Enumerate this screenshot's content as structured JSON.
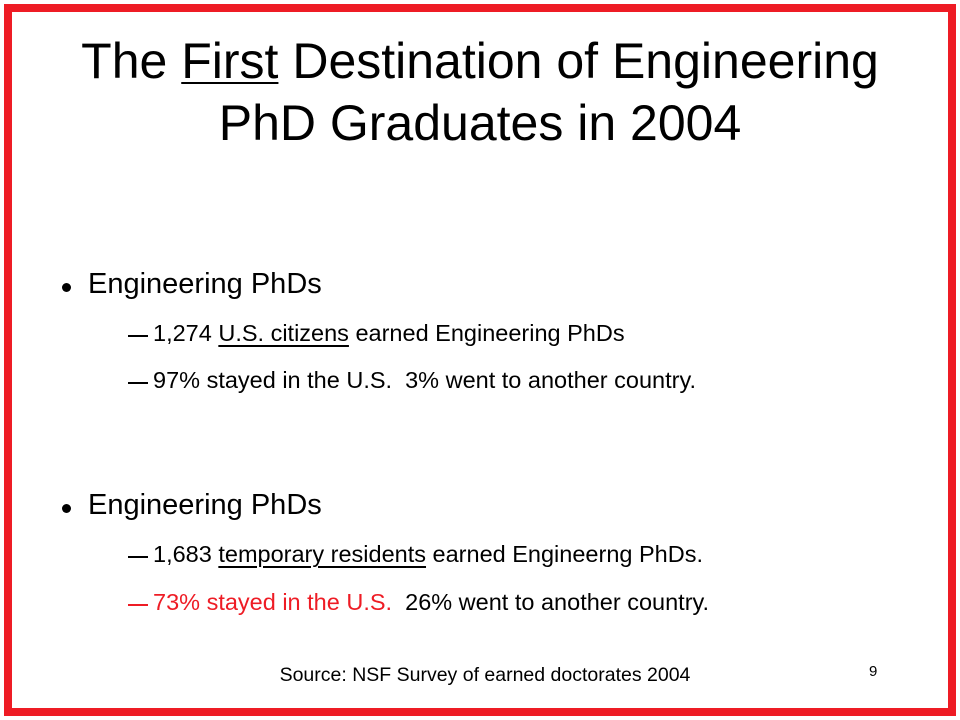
{
  "title": {
    "before": "The ",
    "underlined": "First",
    "after": " Destination of Engineering PhD Graduates in 2004"
  },
  "sections": [
    {
      "bullet": "Engineering PhDs",
      "items": [
        {
          "before": "1,274 ",
          "underlined": "U.S. citizens",
          "after": " earned Engineering PhDs"
        },
        {
          "text": "97% stayed in the U.S.  3% went to another country."
        }
      ]
    },
    {
      "bullet": "Engineering PhDs",
      "items": [
        {
          "before": "1,683 ",
          "underlined": "temporary residents",
          "after": " earned Engineerng PhDs."
        },
        {
          "highlighted": "73% stayed in the U.S.",
          "after": "  26% went to another country."
        }
      ]
    }
  ],
  "source": "Source: NSF Survey of earned doctorates 2004",
  "page_number": "9"
}
